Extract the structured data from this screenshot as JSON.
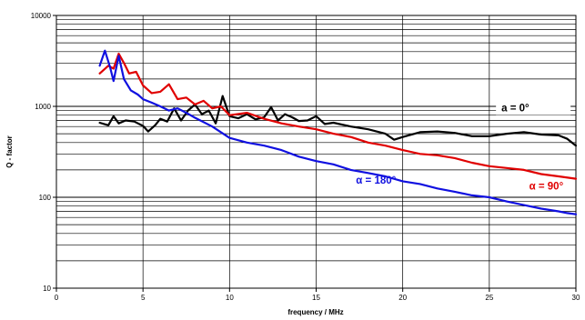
{
  "chart_data": {
    "type": "line",
    "title": "",
    "xlabel": "frequency / MHz",
    "ylabel": "Q - factor",
    "xlim": [
      0,
      30
    ],
    "ylim": [
      10,
      10000
    ],
    "yscale": "log",
    "xticks": [
      0,
      5,
      10,
      15,
      20,
      25,
      30
    ],
    "yticks": [
      10,
      100,
      1000,
      10000
    ],
    "grid": true,
    "legend": "inline labels",
    "series": [
      {
        "name": "a = 0°",
        "color": "#000000",
        "x": [
          2.5,
          3.0,
          3.3,
          3.6,
          4.0,
          4.5,
          5.0,
          5.3,
          5.7,
          6.0,
          6.4,
          6.8,
          7.2,
          7.6,
          8.0,
          8.4,
          8.8,
          9.2,
          9.6,
          10.0,
          10.5,
          11.0,
          11.5,
          12.0,
          12.4,
          12.8,
          13.2,
          13.6,
          14.0,
          14.5,
          15.0,
          15.5,
          16.0,
          17.0,
          18.0,
          19.0,
          19.5,
          20.0,
          21.0,
          22.0,
          23.0,
          24.0,
          25.0,
          26.0,
          27.0,
          28.0,
          29.0,
          29.5,
          30.0
        ],
        "y": [
          660,
          620,
          780,
          650,
          700,
          680,
          610,
          530,
          620,
          730,
          680,
          950,
          700,
          900,
          1050,
          820,
          900,
          650,
          1300,
          780,
          740,
          820,
          720,
          760,
          980,
          700,
          820,
          760,
          690,
          700,
          780,
          640,
          660,
          600,
          560,
          500,
          430,
          460,
          520,
          530,
          510,
          470,
          470,
          500,
          520,
          490,
          480,
          440,
          370
        ]
      },
      {
        "name": "α = 90°",
        "color": "#e00000",
        "x": [
          2.5,
          3.0,
          3.3,
          3.6,
          3.9,
          4.2,
          4.6,
          5.0,
          5.5,
          6.0,
          6.5,
          7.0,
          7.5,
          8.0,
          8.5,
          9.0,
          9.5,
          10.0,
          11.0,
          12.0,
          13.0,
          14.0,
          15.0,
          16.0,
          17.0,
          18.0,
          19.0,
          20.0,
          21.0,
          22.0,
          23.0,
          24.0,
          25.0,
          26.0,
          27.0,
          28.0,
          29.0,
          30.0
        ],
        "y": [
          2300,
          2800,
          2600,
          3800,
          3000,
          2300,
          2400,
          1700,
          1400,
          1450,
          1750,
          1200,
          1250,
          1050,
          1150,
          950,
          1000,
          800,
          850,
          730,
          650,
          600,
          560,
          500,
          460,
          400,
          370,
          330,
          300,
          290,
          270,
          240,
          220,
          210,
          200,
          180,
          170,
          160
        ]
      },
      {
        "name": "α = 180°",
        "color": "#1010e0",
        "x": [
          2.5,
          2.8,
          3.1,
          3.3,
          3.6,
          3.9,
          4.3,
          4.7,
          5.0,
          5.5,
          6.0,
          6.5,
          7.0,
          7.5,
          8.0,
          9.0,
          10.0,
          11.0,
          12.0,
          13.0,
          14.0,
          15.0,
          16.0,
          17.0,
          18.0,
          19.0,
          20.0,
          21.0,
          22.0,
          23.0,
          24.0,
          25.0,
          26.0,
          27.0,
          28.0,
          29.0,
          29.5,
          30.0
        ],
        "y": [
          2800,
          4100,
          2700,
          1900,
          3600,
          2000,
          1500,
          1350,
          1200,
          1100,
          1000,
          900,
          950,
          850,
          750,
          600,
          450,
          400,
          370,
          330,
          280,
          250,
          230,
          200,
          185,
          170,
          150,
          140,
          125,
          115,
          105,
          100,
          90,
          82,
          75,
          70,
          67,
          65
        ]
      }
    ]
  }
}
